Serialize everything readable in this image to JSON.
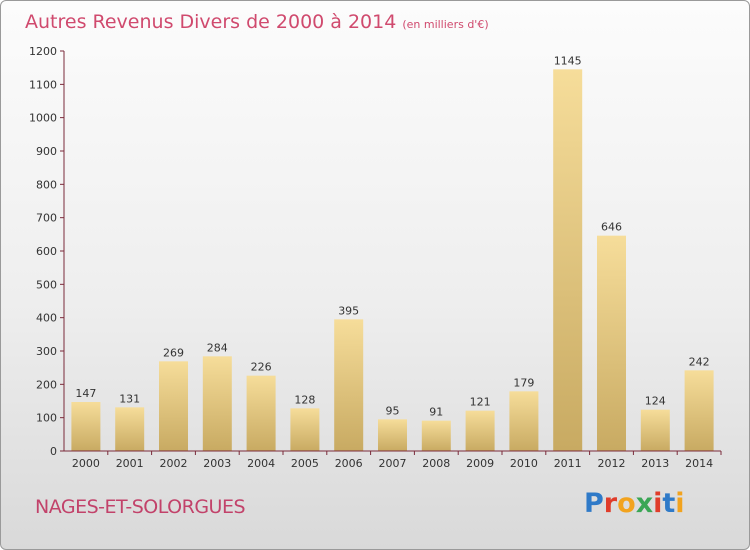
{
  "title": {
    "main": "Autres Revenus Divers de 2000 à 2014",
    "sub": "(en milliers d'€)"
  },
  "location": "NAGES-ET-SOLORGUES",
  "brand": "Proxiti",
  "colors": {
    "title": "#d04a6e",
    "bar_light": "#f5dc98",
    "bar_dark": "#c8aa62",
    "axis": "#7a2a3a"
  },
  "chart_data": {
    "type": "bar",
    "categories": [
      "2000",
      "2001",
      "2002",
      "2003",
      "2004",
      "2005",
      "2006",
      "2007",
      "2008",
      "2009",
      "2010",
      "2011",
      "2012",
      "2013",
      "2014"
    ],
    "values": [
      147,
      131,
      269,
      284,
      226,
      128,
      395,
      95,
      91,
      121,
      179,
      1145,
      646,
      124,
      242
    ],
    "title": "Autres Revenus Divers de 2000 à 2014",
    "ylim": [
      0,
      1200
    ],
    "yticks": [
      0,
      100,
      200,
      300,
      400,
      500,
      600,
      700,
      800,
      900,
      1000,
      1100,
      1200
    ],
    "grid": false
  }
}
